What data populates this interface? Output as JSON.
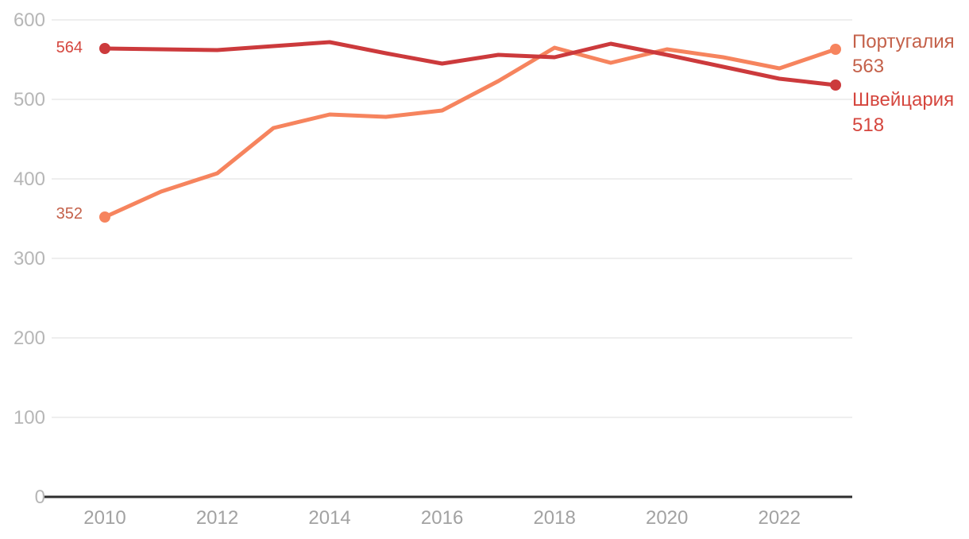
{
  "chart_data": {
    "type": "line",
    "x": [
      2010,
      2011,
      2012,
      2013,
      2014,
      2015,
      2016,
      2017,
      2018,
      2019,
      2020,
      2021,
      2022,
      2023
    ],
    "xlim": [
      2010,
      2023
    ],
    "ylim": [
      0,
      600
    ],
    "y_ticks": [
      0,
      100,
      200,
      300,
      400,
      500,
      600
    ],
    "y_tick_labels": [
      "0",
      "100",
      "200",
      "300",
      "400",
      "500",
      "600"
    ],
    "x_tick_years": [
      2010,
      2012,
      2014,
      2016,
      2018,
      2020,
      2022
    ],
    "x_tick_labels": [
      "2010",
      "2012",
      "2014",
      "2016",
      "2018",
      "2020",
      "2022"
    ],
    "grid": true,
    "title": "",
    "xlabel": "",
    "ylabel": "",
    "legend_position": "right-edge-inline-labels",
    "series": [
      {
        "name": "Португалия",
        "line_color": "#F6845E",
        "label_color": "#C4614A",
        "start_label": "352",
        "end_label": "563",
        "start_value": 352,
        "end_value": 563,
        "values": [
          352,
          384,
          407,
          464,
          481,
          478,
          486,
          523,
          565,
          546,
          563,
          553,
          539,
          563
        ]
      },
      {
        "name": "Швейцария",
        "line_color": "#CC3A3C",
        "label_color": "#D5463E",
        "start_label": "564",
        "end_label": "518",
        "start_value": 564,
        "end_value": 518,
        "values": [
          564,
          563,
          562,
          567,
          572,
          558,
          545,
          556,
          553,
          570,
          556,
          541,
          526,
          518
        ]
      }
    ],
    "colors": {
      "background": "#FFFFFF",
      "grid_line": "#E8E8E8",
      "zero_axis_line": "#2E2E2E",
      "y_tick_text": "#B6B6B6",
      "x_tick_text": "#A2A2A2"
    }
  }
}
